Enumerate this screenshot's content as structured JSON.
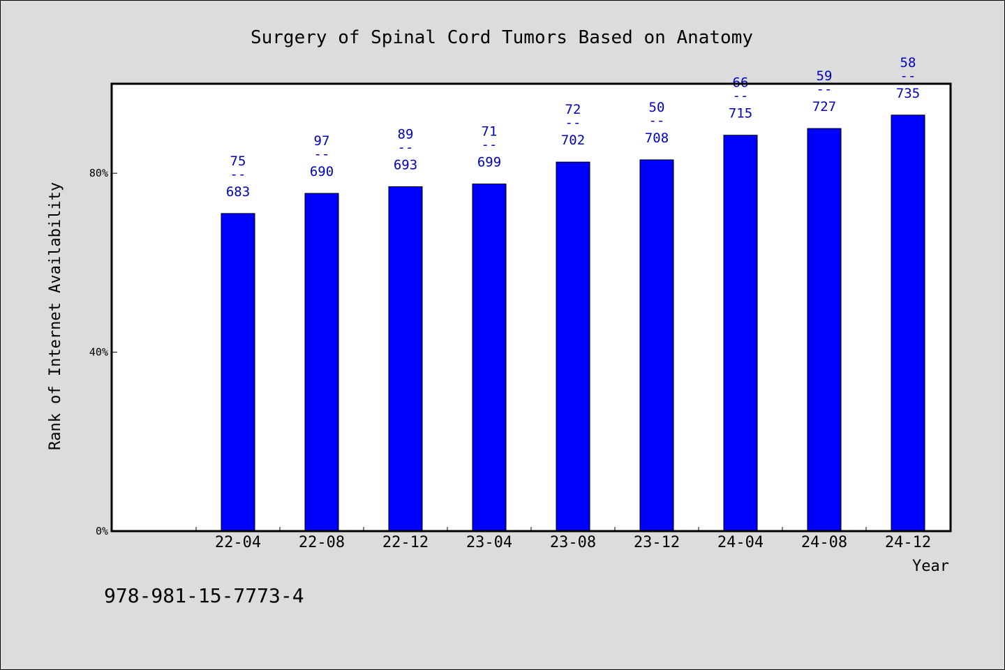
{
  "chart_data": {
    "type": "bar",
    "title": "Surgery of Spinal Cord Tumors Based on Anatomy",
    "xlabel": "Year",
    "ylabel": "Rank of Internet Availability",
    "categories": [
      "22-04",
      "22-08",
      "22-12",
      "23-04",
      "23-08",
      "23-12",
      "24-04",
      "24-08",
      "24-12"
    ],
    "values": [
      71,
      75.5,
      77,
      77.6,
      82.5,
      83,
      88.5,
      90,
      93
    ],
    "label_top": [
      "75",
      "97",
      "89",
      "71",
      "72",
      "50",
      "66",
      "59",
      "58"
    ],
    "label_sep": "--",
    "label_bottom": [
      "683",
      "690",
      "693",
      "699",
      "702",
      "708",
      "715",
      "727",
      "735"
    ],
    "yticks": [
      0,
      40,
      80
    ],
    "ytick_labels": [
      "0%",
      "40%",
      "80%"
    ],
    "ylim": [
      0,
      100
    ],
    "grid": false,
    "bar_color": "#0000ff",
    "label_color": "#0000c8",
    "plot_background": "#ffffff",
    "page_background": "#dcdcdc"
  },
  "footer": {
    "isbn": "978-981-15-7773-4"
  }
}
